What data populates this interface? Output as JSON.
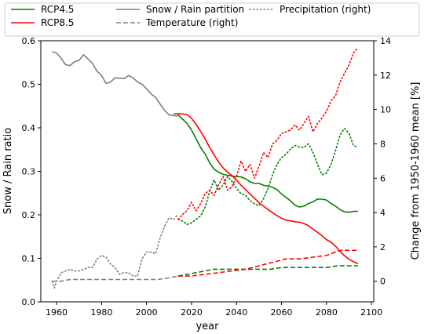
{
  "chart_data": {
    "type": "line",
    "xlabel": "year",
    "ylabel_left": "Snow / Rain ratio",
    "ylabel_right": "Change from 1950-1960 mean [%]",
    "xlim": [
      1953,
      2101
    ],
    "ylim_left": [
      0.0,
      0.6
    ],
    "ylim_right": [
      -1.2,
      14.0
    ],
    "xticks": [
      1960,
      1980,
      2000,
      2020,
      2040,
      2060,
      2080,
      2100
    ],
    "yticks_left": [
      0.0,
      0.1,
      0.2,
      0.3,
      0.4,
      0.5,
      0.6
    ],
    "yticks_right": [
      0,
      2,
      4,
      6,
      8,
      10,
      12,
      14
    ],
    "legend": {
      "placement": "top (above plot area)",
      "entries": [
        {
          "label": "RCP4.5",
          "series": "rcp45"
        },
        {
          "label": "RCP8.5",
          "series": "rcp85"
        },
        {
          "label": "Snow / Rain partition",
          "series": "historical"
        },
        {
          "label": "Temperature (right)",
          "style": "dashed"
        },
        {
          "label": "Precipitation (right)",
          "style": "dotted"
        }
      ]
    },
    "colors": {
      "historical": "#808080",
      "rcp45": "#008000",
      "rcp85": "#ff0000"
    },
    "series": [
      {
        "name": "Snow / Rain partition",
        "axis": "left",
        "style": "solid",
        "color": "#808080",
        "x": [
          1958,
          1960,
          1962,
          1964,
          1966,
          1968,
          1970,
          1972,
          1974,
          1976,
          1978,
          1980,
          1982,
          1984,
          1986,
          1988,
          1990,
          1992,
          1994,
          1996,
          1998,
          2000,
          2002,
          2004,
          2006,
          2008,
          2010,
          2012,
          2014
        ],
        "y": [
          0.575,
          0.572,
          0.56,
          0.545,
          0.543,
          0.552,
          0.555,
          0.568,
          0.558,
          0.548,
          0.53,
          0.52,
          0.502,
          0.505,
          0.515,
          0.514,
          0.513,
          0.52,
          0.515,
          0.505,
          0.5,
          0.49,
          0.478,
          0.47,
          0.455,
          0.44,
          0.43,
          0.428,
          0.427
        ]
      },
      {
        "name": "Temperature (right)",
        "axis": "right",
        "style": "dashed",
        "color": "#808080",
        "x": [
          1958,
          1962,
          1966,
          1970,
          1975,
          1980,
          1985,
          1990,
          1995,
          2000,
          2005,
          2010,
          2014
        ],
        "y": [
          0.0,
          0.0,
          0.1,
          0.1,
          0.1,
          0.1,
          0.1,
          0.1,
          0.1,
          0.1,
          0.1,
          0.2,
          0.3
        ]
      },
      {
        "name": "Precipitation (right)",
        "axis": "right",
        "style": "dotted",
        "color": "#808080",
        "x": [
          1958,
          1959,
          1960,
          1962,
          1964,
          1966,
          1968,
          1970,
          1972,
          1974,
          1976,
          1978,
          1980,
          1982,
          1984,
          1986,
          1988,
          1990,
          1992,
          1994,
          1996,
          1998,
          2000,
          2002,
          2004,
          2006,
          2008,
          2010,
          2012,
          2014
        ],
        "y": [
          0.0,
          -0.4,
          0.0,
          0.5,
          0.6,
          0.7,
          0.6,
          0.6,
          0.7,
          0.8,
          0.8,
          1.3,
          1.5,
          1.4,
          1.0,
          0.8,
          0.4,
          0.5,
          0.5,
          0.3,
          0.3,
          1.3,
          1.7,
          1.7,
          1.6,
          2.5,
          3.2,
          3.7,
          3.6,
          3.9
        ]
      },
      {
        "name": "RCP4.5",
        "axis": "left",
        "style": "solid",
        "color": "#008000",
        "x": [
          2014,
          2016,
          2018,
          2020,
          2022,
          2024,
          2026,
          2028,
          2030,
          2032,
          2034,
          2036,
          2038,
          2040,
          2042,
          2044,
          2046,
          2048,
          2050,
          2052,
          2054,
          2056,
          2058,
          2060,
          2062,
          2064,
          2066,
          2068,
          2070,
          2072,
          2074,
          2076,
          2078,
          2080,
          2082,
          2084,
          2086,
          2088,
          2090,
          2092,
          2094
        ],
        "y": [
          0.43,
          0.42,
          0.41,
          0.395,
          0.375,
          0.355,
          0.34,
          0.32,
          0.305,
          0.298,
          0.293,
          0.291,
          0.289,
          0.288,
          0.287,
          0.283,
          0.276,
          0.272,
          0.272,
          0.268,
          0.266,
          0.263,
          0.258,
          0.248,
          0.24,
          0.232,
          0.222,
          0.218,
          0.22,
          0.226,
          0.23,
          0.236,
          0.236,
          0.234,
          0.226,
          0.22,
          0.212,
          0.207,
          0.206,
          0.208,
          0.208
        ]
      },
      {
        "name": "RCP4.5 Temperature (right)",
        "axis": "right",
        "style": "dashed",
        "color": "#008000",
        "x": [
          2014,
          2018,
          2022,
          2026,
          2030,
          2035,
          2040,
          2045,
          2050,
          2055,
          2060,
          2065,
          2070,
          2075,
          2080,
          2085,
          2090,
          2094
        ],
        "y": [
          0.3,
          0.4,
          0.5,
          0.6,
          0.7,
          0.7,
          0.7,
          0.7,
          0.7,
          0.7,
          0.8,
          0.8,
          0.8,
          0.8,
          0.8,
          0.9,
          0.9,
          0.9
        ]
      },
      {
        "name": "RCP4.5 Precipitation (right)",
        "axis": "right",
        "style": "dotted",
        "color": "#008000",
        "x": [
          2014,
          2016,
          2018,
          2020,
          2022,
          2024,
          2026,
          2028,
          2030,
          2032,
          2034,
          2036,
          2038,
          2040,
          2042,
          2044,
          2046,
          2048,
          2050,
          2052,
          2054,
          2056,
          2058,
          2060,
          2062,
          2064,
          2066,
          2068,
          2070,
          2072,
          2074,
          2076,
          2078,
          2080,
          2082,
          2084,
          2086,
          2088,
          2090,
          2092,
          2094
        ],
        "y": [
          3.6,
          3.5,
          3.3,
          3.4,
          3.6,
          3.8,
          4.3,
          5.2,
          5.9,
          5.3,
          5.6,
          6.1,
          5.8,
          5.4,
          5.1,
          5.0,
          4.7,
          4.5,
          4.4,
          4.8,
          5.4,
          6.2,
          6.8,
          7.2,
          7.4,
          7.7,
          7.9,
          7.8,
          7.8,
          8.0,
          7.5,
          6.8,
          6.2,
          6.3,
          6.8,
          7.6,
          8.5,
          8.9,
          8.6,
          7.9,
          7.8
        ]
      },
      {
        "name": "RCP8.5",
        "axis": "left",
        "style": "solid",
        "color": "#ff0000",
        "x": [
          2012,
          2014,
          2016,
          2018,
          2020,
          2022,
          2024,
          2026,
          2028,
          2030,
          2032,
          2034,
          2036,
          2038,
          2040,
          2042,
          2044,
          2046,
          2048,
          2050,
          2052,
          2054,
          2056,
          2058,
          2060,
          2062,
          2064,
          2066,
          2068,
          2070,
          2072,
          2074,
          2076,
          2078,
          2080,
          2082,
          2084,
          2086,
          2088,
          2090,
          2092,
          2094
        ],
        "y": [
          0.432,
          0.432,
          0.432,
          0.43,
          0.422,
          0.408,
          0.392,
          0.375,
          0.355,
          0.338,
          0.322,
          0.308,
          0.298,
          0.29,
          0.28,
          0.268,
          0.258,
          0.248,
          0.238,
          0.228,
          0.22,
          0.212,
          0.205,
          0.198,
          0.192,
          0.188,
          0.186,
          0.184,
          0.183,
          0.18,
          0.175,
          0.167,
          0.16,
          0.152,
          0.143,
          0.137,
          0.128,
          0.116,
          0.106,
          0.098,
          0.092,
          0.088
        ]
      },
      {
        "name": "RCP8.5 Temperature (right)",
        "axis": "right",
        "style": "dashed",
        "color": "#ff0000",
        "x": [
          2014,
          2020,
          2026,
          2032,
          2038,
          2044,
          2050,
          2056,
          2062,
          2068,
          2074,
          2080,
          2086,
          2090,
          2094
        ],
        "y": [
          0.3,
          0.3,
          0.4,
          0.5,
          0.6,
          0.7,
          0.9,
          1.1,
          1.3,
          1.3,
          1.4,
          1.5,
          1.8,
          1.8,
          1.8
        ]
      },
      {
        "name": "RCP8.5 Precipitation (right)",
        "axis": "right",
        "style": "dotted",
        "color": "#ff0000",
        "x": [
          2014,
          2016,
          2018,
          2020,
          2022,
          2024,
          2026,
          2028,
          2030,
          2032,
          2034,
          2036,
          2038,
          2040,
          2042,
          2044,
          2046,
          2048,
          2050,
          2052,
          2054,
          2056,
          2058,
          2060,
          2062,
          2064,
          2066,
          2068,
          2070,
          2072,
          2074,
          2076,
          2078,
          2080,
          2082,
          2084,
          2086,
          2088,
          2090,
          2092,
          2094
        ],
        "y": [
          3.6,
          3.9,
          4.1,
          4.6,
          4.1,
          4.5,
          5.1,
          5.3,
          5.0,
          5.6,
          6.1,
          5.3,
          5.5,
          6.1,
          7.0,
          6.4,
          6.8,
          6.0,
          6.7,
          7.5,
          7.2,
          8.0,
          8.2,
          8.6,
          8.7,
          8.8,
          9.1,
          8.8,
          9.2,
          9.6,
          8.7,
          9.2,
          9.5,
          9.9,
          10.5,
          10.8,
          11.6,
          12.1,
          12.6,
          13.3,
          13.6
        ]
      }
    ]
  }
}
